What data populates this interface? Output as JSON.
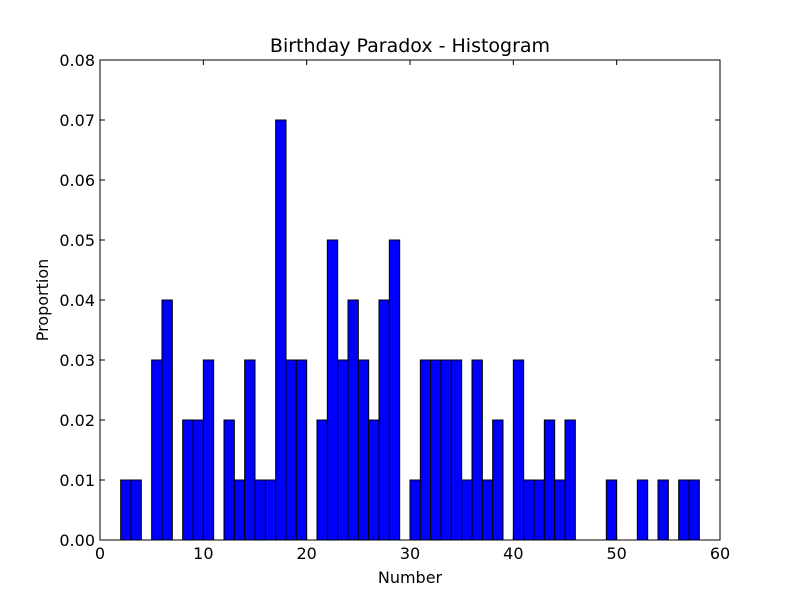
{
  "chart_data": {
    "type": "bar",
    "title": "Birthday Paradox - Histogram",
    "xlabel": "Number",
    "ylabel": "Proportion",
    "xlim": [
      0,
      60
    ],
    "ylim": [
      0,
      0.08
    ],
    "xticks": [
      0,
      10,
      20,
      30,
      40,
      50,
      60
    ],
    "xtick_labels": [
      "0",
      "10",
      "20",
      "30",
      "40",
      "50",
      "60"
    ],
    "yticks": [
      0.0,
      0.01,
      0.02,
      0.03,
      0.04,
      0.05,
      0.06,
      0.07,
      0.08
    ],
    "ytick_labels": [
      "0.00",
      "0.01",
      "0.02",
      "0.03",
      "0.04",
      "0.05",
      "0.06",
      "0.07",
      "0.08"
    ],
    "grid": false,
    "bar_color": "#0000ff",
    "edge_color": "#000000",
    "bin_edges": [
      2,
      3,
      4,
      5,
      6,
      7,
      8,
      9,
      10,
      11,
      12,
      13,
      14,
      15,
      16,
      17,
      18,
      19,
      20,
      21,
      22,
      23,
      24,
      25,
      26,
      27,
      28,
      29,
      30,
      31,
      32,
      33,
      34,
      35,
      36,
      37,
      38,
      39,
      40,
      41,
      42,
      43,
      44,
      45,
      46,
      47,
      48,
      49,
      50,
      51,
      52,
      53,
      54,
      55,
      56,
      57,
      58
    ],
    "values": [
      0.01,
      0.01,
      0.0,
      0.03,
      0.04,
      0.0,
      0.02,
      0.02,
      0.03,
      0.0,
      0.02,
      0.01,
      0.03,
      0.01,
      0.01,
      0.07,
      0.03,
      0.03,
      0.0,
      0.02,
      0.05,
      0.03,
      0.04,
      0.03,
      0.02,
      0.04,
      0.05,
      0.0,
      0.01,
      0.03,
      0.03,
      0.03,
      0.03,
      0.01,
      0.03,
      0.01,
      0.02,
      0.0,
      0.03,
      0.01,
      0.01,
      0.02,
      0.01,
      0.02,
      0.0,
      0.0,
      0.0,
      0.01,
      0.0,
      0.0,
      0.01,
      0.0,
      0.01,
      0.0,
      0.01,
      0.01
    ]
  }
}
